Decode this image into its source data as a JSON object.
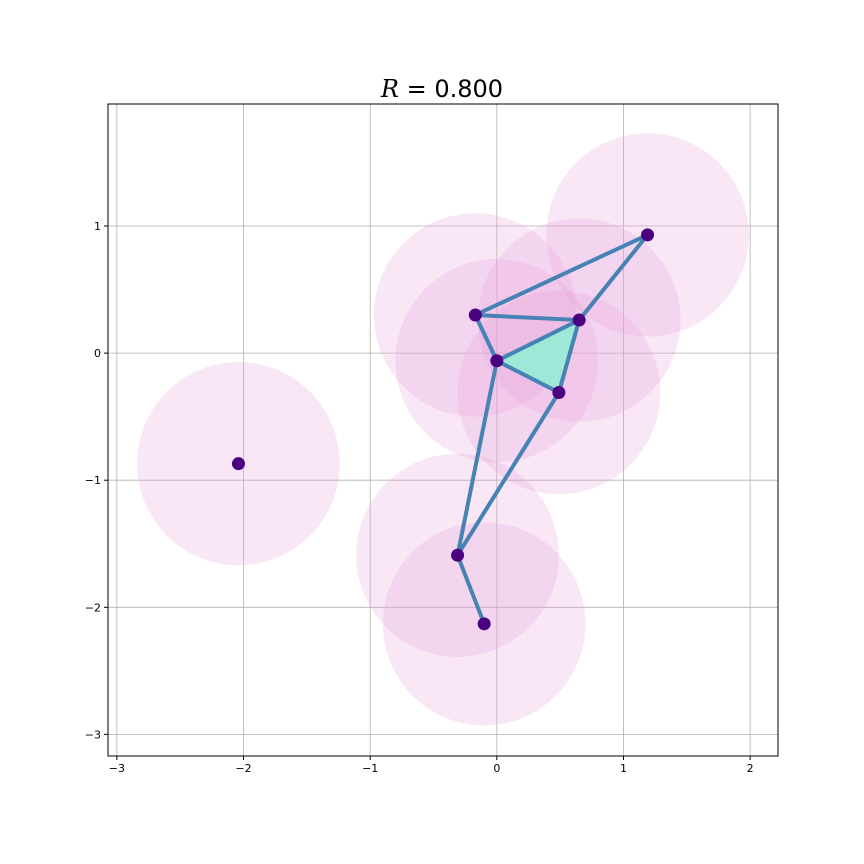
{
  "chart_data": {
    "type": "scatter",
    "title": "R = 0.800",
    "title_symbol": "R",
    "title_value": "0.800",
    "xlabel": "",
    "ylabel": "",
    "xlim": [
      -3.07,
      2.22
    ],
    "ylim": [
      -3.17,
      1.96
    ],
    "xticks": [
      -3,
      -2,
      -1,
      0,
      1,
      2
    ],
    "yticks": [
      -3,
      -2,
      -1,
      0,
      1
    ],
    "xtick_labels": [
      "−3",
      "−2",
      "−1",
      "0",
      "1",
      "2"
    ],
    "ytick_labels": [
      "−3",
      "−2",
      "−1",
      "0",
      "1"
    ],
    "grid": true,
    "radius": 0.8,
    "points": [
      {
        "x": -2.04,
        "y": -0.87
      },
      {
        "x": -0.17,
        "y": 0.3
      },
      {
        "x": 0.0,
        "y": -0.06
      },
      {
        "x": 0.65,
        "y": 0.26
      },
      {
        "x": 1.19,
        "y": 0.93
      },
      {
        "x": 0.49,
        "y": -0.31
      },
      {
        "x": -0.31,
        "y": -1.59
      },
      {
        "x": -0.1,
        "y": -2.13
      }
    ],
    "edges": [
      [
        1,
        2
      ],
      [
        1,
        3
      ],
      [
        1,
        4
      ],
      [
        2,
        3
      ],
      [
        2,
        5
      ],
      [
        3,
        5
      ],
      [
        3,
        4
      ],
      [
        2,
        6
      ],
      [
        5,
        6
      ],
      [
        6,
        7
      ]
    ],
    "triangles": [
      [
        2,
        3,
        5
      ]
    ],
    "colors": {
      "disk": "#e7a1dd",
      "disk_opacity": 0.25,
      "point": "#4b0082",
      "edge": "#4682b4",
      "triangle": "#9ee8d8",
      "grid": "#b0b0b0",
      "axes": "#000000"
    }
  }
}
